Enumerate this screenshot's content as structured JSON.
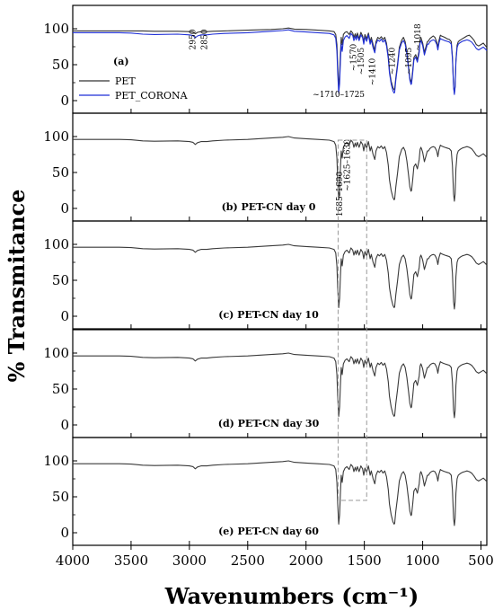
{
  "chart_data": {
    "type": "line",
    "xlabel": "Wavenumbers (cm⁻¹)",
    "ylabel": "% Transmitance",
    "xlim": [
      4000,
      450
    ],
    "x_ticks": [
      4000,
      3500,
      3000,
      2500,
      2000,
      1500,
      1000,
      500
    ],
    "x_tick_labels": [
      "4000",
      "3500",
      "3000",
      "2500",
      "2000",
      "1500",
      "1000",
      "500"
    ],
    "ylim": [
      0,
      100
    ],
    "y_ticks": [
      0,
      50,
      100
    ],
    "y_tick_labels": [
      "0",
      "50",
      "100"
    ],
    "series_colors": {
      "PET": "#333333",
      "PET_CORONA": "#1f2fd6",
      "spectrum": "#3a3a3a"
    },
    "highlight_box": {
      "x_range": [
        1725,
        1480
      ],
      "color": "#999999",
      "style": "dashed"
    },
    "panels": [
      {
        "label": "(a)",
        "legend": [
          {
            "name": "PET",
            "color": "#333333"
          },
          {
            "name": "PET_CORONA",
            "color": "#1f2fd6"
          }
        ],
        "series": [
          {
            "name": "PET",
            "color": "#333333",
            "offset": 0
          },
          {
            "name": "PET_CORONA",
            "color": "#1f2fd6",
            "offset": -1.5
          }
        ],
        "annotations": [
          {
            "text": "2950",
            "x": 2950,
            "y": 85,
            "rotate": -90
          },
          {
            "text": "2850",
            "x": 2850,
            "y": 85,
            "rotate": -90
          },
          {
            "text": "~1710–1725",
            "x": 1720,
            "y": 5,
            "rotate": 0
          },
          {
            "text": "~1570",
            "x": 1570,
            "y": 60,
            "rotate": -90
          },
          {
            "text": "~1505",
            "x": 1505,
            "y": 55,
            "rotate": -90
          },
          {
            "text": "~1410",
            "x": 1410,
            "y": 40,
            "rotate": -90
          },
          {
            "text": "~1240",
            "x": 1240,
            "y": 55,
            "rotate": -90
          },
          {
            "text": "~1095",
            "x": 1095,
            "y": 55,
            "rotate": -90
          },
          {
            "text": "~1018",
            "x": 1018,
            "y": 88,
            "rotate": -90
          }
        ]
      },
      {
        "label": "(b) PET-CN day 0",
        "series": [
          {
            "name": "PET-CN day 0",
            "color": "#3a3a3a",
            "offset": 0
          }
        ],
        "annotations": [
          {
            "text": "1685–1690",
            "x": 1690,
            "y": 20,
            "rotate": -90
          },
          {
            "text": "~1625–1630",
            "x": 1625,
            "y": 60,
            "rotate": -90
          }
        ]
      },
      {
        "label": "(c) PET-CN day 10",
        "series": [
          {
            "name": "PET-CN day 10",
            "color": "#3a3a3a",
            "offset": 0
          }
        ],
        "annotations": []
      },
      {
        "label": "(d) PET-CN day 30",
        "series": [
          {
            "name": "PET-CN day 30",
            "color": "#3a3a3a",
            "offset": 0
          }
        ],
        "annotations": []
      },
      {
        "label": "(e) PET-CN day 60",
        "series": [
          {
            "name": "PET-CN day 60",
            "color": "#3a3a3a",
            "offset": 0
          }
        ],
        "annotations": []
      }
    ],
    "spectrum": {
      "x": [
        4000,
        3800,
        3600,
        3500,
        3400,
        3300,
        3100,
        3000,
        2970,
        2950,
        2930,
        2900,
        2850,
        2800,
        2700,
        2500,
        2300,
        2200,
        2150,
        2100,
        2000,
        1900,
        1800,
        1760,
        1745,
        1735,
        1728,
        1720,
        1712,
        1705,
        1698,
        1690,
        1680,
        1665,
        1650,
        1630,
        1615,
        1600,
        1590,
        1578,
        1570,
        1560,
        1545,
        1530,
        1515,
        1505,
        1495,
        1480,
        1465,
        1450,
        1440,
        1425,
        1410,
        1400,
        1385,
        1370,
        1355,
        1340,
        1325,
        1310,
        1295,
        1285,
        1270,
        1255,
        1245,
        1240,
        1230,
        1215,
        1200,
        1180,
        1165,
        1150,
        1135,
        1120,
        1110,
        1100,
        1095,
        1085,
        1075,
        1060,
        1045,
        1030,
        1022,
        1015,
        1010,
        1000,
        985,
        970,
        960,
        950,
        940,
        925,
        910,
        895,
        880,
        870,
        860,
        848,
        840,
        825,
        810,
        790,
        770,
        755,
        745,
        735,
        728,
        722,
        715,
        705,
        695,
        680,
        660,
        640,
        620,
        600,
        580,
        560,
        540,
        520,
        500,
        480,
        460,
        450
      ],
      "y": [
        96,
        96,
        96,
        95.5,
        94,
        93.5,
        94,
        93,
        92,
        89,
        91.5,
        93,
        93,
        94,
        95,
        96,
        98,
        99,
        100,
        98,
        97,
        96,
        95,
        93,
        88,
        70,
        40,
        12,
        25,
        55,
        80,
        70,
        85,
        90,
        92,
        88,
        95,
        92,
        85,
        91,
        86,
        92,
        85,
        93,
        89,
        80,
        90,
        84,
        93,
        80,
        86,
        75,
        68,
        80,
        86,
        84,
        87,
        83,
        86,
        78,
        60,
        40,
        25,
        15,
        12,
        13,
        30,
        50,
        72,
        82,
        85,
        80,
        66,
        45,
        30,
        24,
        25,
        40,
        58,
        62,
        55,
        68,
        82,
        85,
        83,
        78,
        65,
        74,
        80,
        80,
        83,
        85,
        86,
        85,
        80,
        72,
        82,
        88,
        87,
        86,
        85,
        84,
        83,
        80,
        60,
        20,
        10,
        20,
        55,
        75,
        80,
        82,
        84,
        85,
        86,
        85,
        83,
        79,
        74,
        72,
        74,
        76,
        73,
        71
      ]
    },
    "pet_a": {
      "x": [
        4000,
        3800,
        3600,
        3500,
        3400,
        3300,
        3100,
        3000,
        2970,
        2950,
        2930,
        2900,
        2850,
        2800,
        2700,
        2500,
        2300,
        2200,
        2150,
        2100,
        2000,
        1900,
        1800,
        1760,
        1745,
        1735,
        1728,
        1720,
        1712,
        1705,
        1698,
        1690,
        1680,
        1665,
        1650,
        1630,
        1615,
        1600,
        1590,
        1578,
        1570,
        1560,
        1545,
        1530,
        1515,
        1505,
        1495,
        1480,
        1465,
        1450,
        1440,
        1425,
        1410,
        1400,
        1385,
        1370,
        1355,
        1340,
        1325,
        1310,
        1295,
        1285,
        1270,
        1255,
        1245,
        1240,
        1230,
        1215,
        1200,
        1180,
        1165,
        1150,
        1135,
        1120,
        1110,
        1100,
        1095,
        1085,
        1075,
        1060,
        1045,
        1030,
        1022,
        1015,
        1010,
        1000,
        985,
        970,
        960,
        950,
        940,
        925,
        910,
        895,
        880,
        870,
        860,
        848,
        840,
        825,
        810,
        790,
        770,
        755,
        745,
        735,
        728,
        722,
        715,
        705,
        695,
        680,
        660,
        640,
        620,
        600,
        580,
        560,
        540,
        520,
        500,
        480,
        460,
        450
      ],
      "y": [
        97,
        97,
        97,
        97,
        97,
        96.5,
        96.5,
        96,
        95.5,
        93,
        95,
        96,
        96,
        96.5,
        97,
        98,
        99,
        100,
        101,
        99.5,
        99,
        98,
        97,
        96,
        92,
        78,
        50,
        18,
        35,
        65,
        88,
        78,
        92,
        95,
        96,
        92,
        97,
        94,
        88,
        93,
        88,
        94,
        86,
        95,
        90,
        82,
        92,
        86,
        94,
        82,
        88,
        78,
        70,
        82,
        88,
        86,
        89,
        85,
        88,
        80,
        62,
        42,
        27,
        18,
        15,
        16,
        32,
        52,
        74,
        84,
        88,
        82,
        68,
        46,
        32,
        26,
        27,
        42,
        60,
        64,
        57,
        70,
        85,
        88,
        85,
        80,
        67,
        76,
        82,
        83,
        86,
        88,
        90,
        88,
        82,
        74,
        84,
        91,
        90,
        89,
        88,
        86,
        85,
        82,
        62,
        20,
        10,
        20,
        56,
        77,
        82,
        84,
        86,
        88,
        90,
        91,
        88,
        84,
        78,
        76,
        78,
        80,
        76,
        74
      ]
    }
  }
}
